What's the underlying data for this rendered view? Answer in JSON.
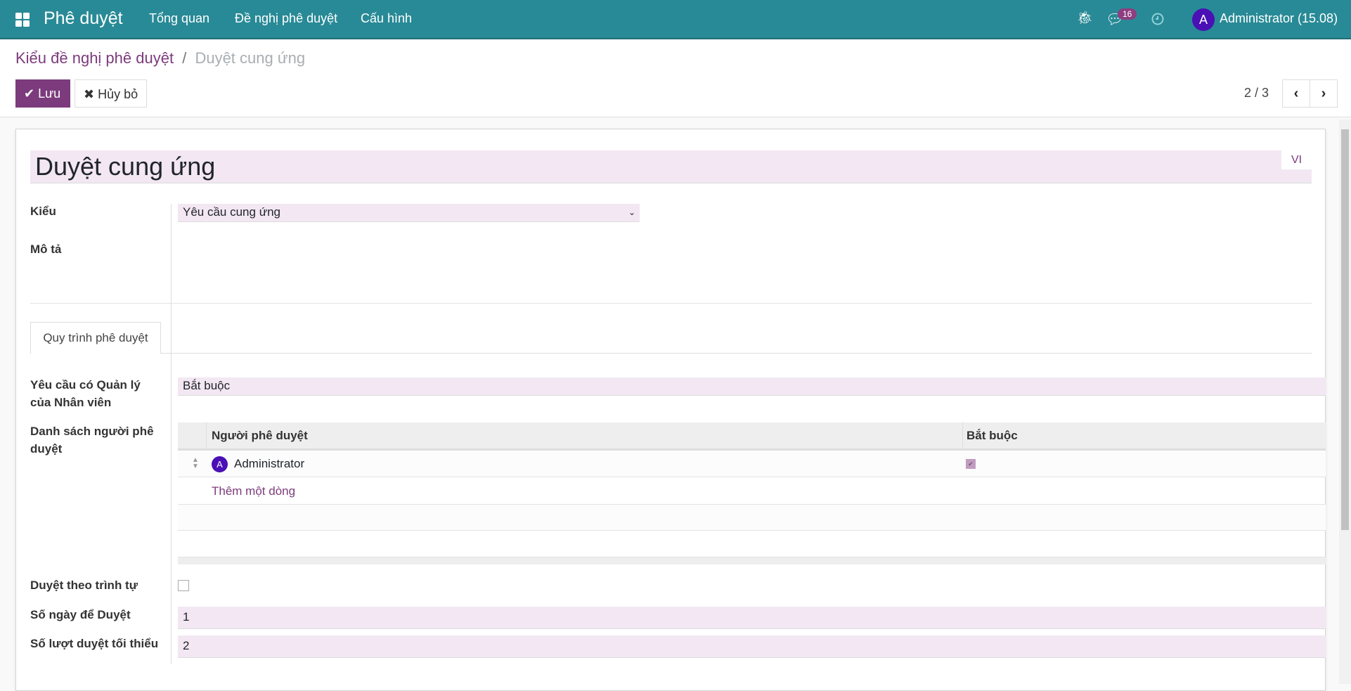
{
  "navbar": {
    "app_title": "Phê duyệt",
    "menu": [
      "Tổng quan",
      "Đề nghị phê duyệt",
      "Cấu hình"
    ],
    "message_count": "16",
    "user_initial": "A",
    "user_name": "Administrator (15.08)",
    "color": "#288a96"
  },
  "breadcrumb": {
    "parent": "Kiểu đề nghị phê duyệt",
    "separator": "/",
    "current": "Duyệt cung ứng"
  },
  "toolbar": {
    "save_label": "Lưu",
    "discard_label": "Hủy bỏ",
    "pager": "2 / 3"
  },
  "form": {
    "name": "Duyệt cung ứng",
    "lang": "VI",
    "type_label": "Kiểu",
    "type_value": "Yêu cầu cung ứng",
    "description_label": "Mô tả",
    "tab": "Quy trình phê duyệt",
    "manager_label": "Yêu cầu có Quản lý của Nhân viên",
    "manager_value": "Bắt buộc",
    "approvers_label": "Danh sách người phê duyệt",
    "approvers_columns": [
      "Người phê duyệt",
      "Bắt buộc"
    ],
    "approvers": [
      {
        "initial": "A",
        "name": "Administrator",
        "required": true
      }
    ],
    "add_line": "Thêm một dòng",
    "sequence_label": "Duyệt theo trình tự",
    "sequence_checked": false,
    "days_label": "Số ngày để Duyệt",
    "days_value": "1",
    "min_label": "Số lượt duyệt tối thiểu",
    "min_value": "2"
  },
  "colors": {
    "primary": "#7c3b7c",
    "field_bg": "#f2e7f3",
    "avatar": "#4a0fb5"
  }
}
